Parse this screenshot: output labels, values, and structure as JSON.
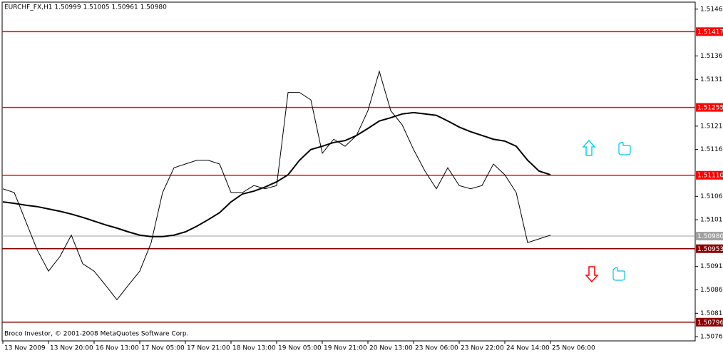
{
  "chart_data": {
    "type": "line",
    "title": "EURCHF_FX,H1  1.50999 1.51005 1.50961 1.50980",
    "annotation": "Broco Investor, © 2001-2008 MetaQuotes Software Corp.",
    "categories": [
      "13 Nov 2009",
      null,
      null,
      null,
      "13 Nov 20:00",
      null,
      null,
      null,
      "16 Nov 13:00",
      null,
      null,
      null,
      "17 Nov 05:00",
      null,
      null,
      null,
      "17 Nov 21:00",
      null,
      null,
      null,
      "18 Nov 13:00",
      null,
      null,
      null,
      "19 Nov 05:00",
      null,
      null,
      null,
      "19 Nov 21:00",
      null,
      null,
      null,
      "20 Nov 13:00",
      null,
      null,
      null,
      "23 Nov 06:00",
      null,
      null,
      null,
      "23 Nov 22:00",
      null,
      null,
      null,
      "24 Nov 14:00",
      null,
      null,
      null,
      "25 Nov 06:00"
    ],
    "series": [
      {
        "color": "#000000",
        "width": 1,
        "values": [
          1.51081,
          1.51073,
          1.51012,
          1.50951,
          1.50905,
          1.50936,
          1.50982,
          1.50921,
          1.50905,
          1.50875,
          1.50844,
          1.50875,
          1.50905,
          1.50966,
          1.51073,
          1.51126,
          1.51134,
          1.51142,
          1.51142,
          1.51134,
          1.51073,
          1.51073,
          1.51088,
          1.51081,
          1.51088,
          1.51287,
          1.51287,
          1.51271,
          1.51157,
          1.51187,
          1.51172,
          1.51195,
          1.51248,
          1.51332,
          1.51248,
          1.51218,
          1.51165,
          1.51119,
          1.51081,
          1.51126,
          1.51088,
          1.51081,
          1.51088,
          1.51134,
          1.51111,
          1.51073,
          1.50966,
          1.50974,
          1.50982
        ]
      },
      {
        "color": "#000000",
        "width": 2,
        "values": [
          1.51053,
          1.5105,
          1.51046,
          1.51043,
          1.51038,
          1.51033,
          1.51027,
          1.5102,
          1.51012,
          1.51004,
          1.50997,
          1.50989,
          1.50982,
          1.50979,
          1.50979,
          1.50982,
          1.50989,
          1.51001,
          1.51015,
          1.5103,
          1.51053,
          1.5107,
          1.51076,
          1.51085,
          1.51096,
          1.51111,
          1.51142,
          1.51165,
          1.51172,
          1.5118,
          1.51184,
          1.51195,
          1.5121,
          1.51226,
          1.51233,
          1.51241,
          1.51244,
          1.51241,
          1.51238,
          1.51226,
          1.51213,
          1.51203,
          1.51195,
          1.51187,
          1.51183,
          1.51172,
          1.51142,
          1.51119,
          1.51111
        ]
      }
    ],
    "levels": [
      {
        "value": 1.51417,
        "label": "1.51417",
        "color": "#ff0000"
      },
      {
        "value": 1.51255,
        "label": "1.51255",
        "color": "#ff0000"
      },
      {
        "value": 1.5111,
        "label": "1.51110",
        "color": "#ff0000"
      },
      {
        "value": 1.50953,
        "label": "1.50953",
        "color": "#8b0000"
      },
      {
        "value": 1.50796,
        "label": "1.50796",
        "color": "#8b0000"
      }
    ],
    "current_price": {
      "value": 1.5098,
      "label": "1.50980",
      "color": "#a0a0a0"
    },
    "ylim": [
      1.50756,
      1.5148
    ],
    "yticks": [
      1.51465,
      1.51365,
      1.51315,
      1.51215,
      1.51165,
      1.51065,
      1.51015,
      1.50915,
      1.50865,
      1.50815,
      1.50765
    ]
  }
}
